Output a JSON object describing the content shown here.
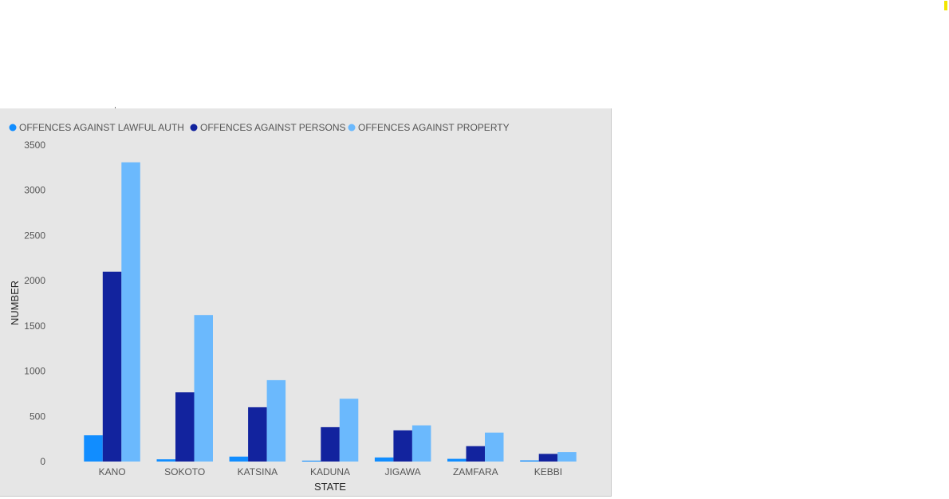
{
  "chart_data": {
    "type": "bar",
    "title": "",
    "xlabel": "STATE",
    "ylabel": "NUMBER",
    "ylim": [
      0,
      3500
    ],
    "yticks": [
      0,
      500,
      1000,
      1500,
      2000,
      2500,
      3000,
      3500
    ],
    "grid": false,
    "legend_position": "top-left",
    "categories": [
      "KANO",
      "SOKOTO",
      "KATSINA",
      "KADUNA",
      "JIGAWA",
      "ZAMFARA",
      "KEBBI"
    ],
    "series": [
      {
        "name": "OFFENCES AGAINST LAWFUL AUTH",
        "color": "#118dff",
        "values": [
          290,
          25,
          55,
          10,
          45,
          30,
          12
        ]
      },
      {
        "name": "OFFENCES AGAINST PERSONS",
        "color": "#12239e",
        "values": [
          2100,
          765,
          600,
          380,
          345,
          170,
          85
        ]
      },
      {
        "name": "OFFENCES AGAINST PROPERTY",
        "color": "#6bb9fd",
        "values": [
          3310,
          1620,
          900,
          695,
          400,
          320,
          105
        ]
      }
    ]
  }
}
